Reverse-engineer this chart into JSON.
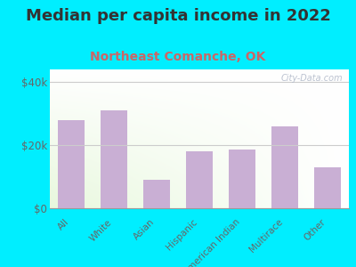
{
  "title": "Median per capita income in 2022",
  "subtitle": "Northeast Comanche, OK",
  "categories": [
    "All",
    "White",
    "Asian",
    "Hispanic",
    "American Indian",
    "Multirace",
    "Other"
  ],
  "values": [
    28000,
    31000,
    9000,
    18000,
    18500,
    26000,
    13000
  ],
  "bar_color": "#c9afd4",
  "background_outer": "#00eeff",
  "title_color": "#333333",
  "subtitle_color": "#cc6666",
  "tick_label_color": "#666666",
  "ytick_labels": [
    "$0",
    "$20k",
    "$40k"
  ],
  "ytick_values": [
    0,
    20000,
    40000
  ],
  "ylim": [
    0,
    44000
  ],
  "watermark": "City-Data.com",
  "title_fontsize": 13,
  "subtitle_fontsize": 10,
  "axis_label_fontsize": 7.5
}
